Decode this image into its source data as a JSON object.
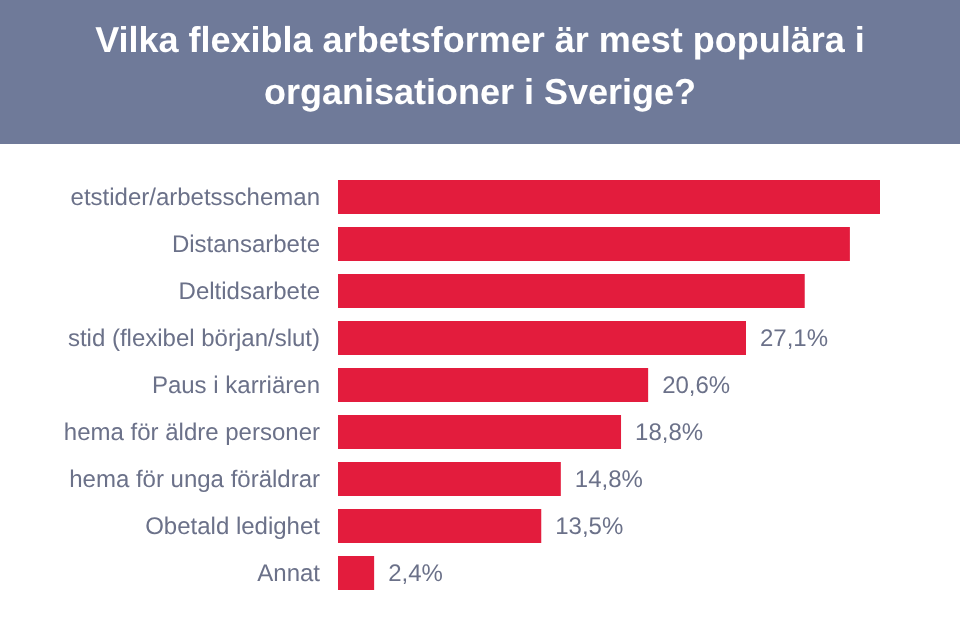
{
  "chart_data": {
    "type": "bar",
    "orientation": "horizontal",
    "title": "Vilka flexibla arbetsformer är mest populära i organisationer i Sverige?",
    "categories": [
      "etstider/arbetsscheman",
      "Distansarbete",
      "Deltidsarbete",
      "stid (flexibel början/slut)",
      "Paus i karriären",
      "hema för äldre personer",
      "hema för unga föräldrar",
      "Obetald ledighet",
      "Annat"
    ],
    "values": [
      36,
      34,
      31,
      27.1,
      20.6,
      18.8,
      14.8,
      13.5,
      2.4
    ],
    "value_labels": [
      null,
      null,
      null,
      "27,1%",
      "20,6%",
      "18,8%",
      "14,8%",
      "13,5%",
      "2,4%"
    ],
    "color": "#e31c3d"
  }
}
